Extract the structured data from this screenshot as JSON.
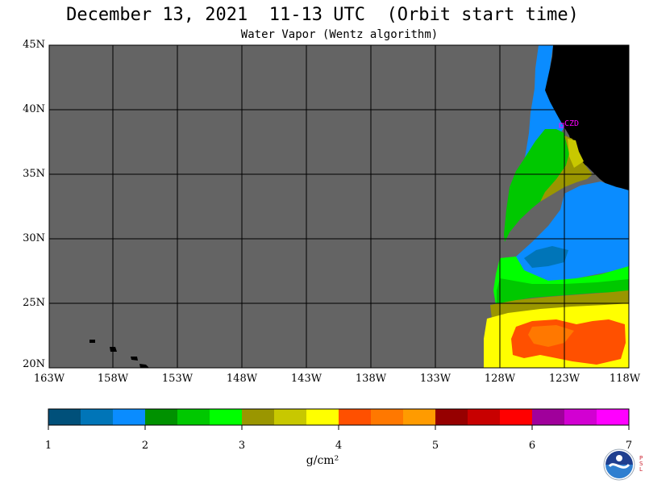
{
  "title": "December 13, 2021  11-13 UTC  (Orbit start time)",
  "subtitle": "Water Vapor (Wentz algorithm)",
  "lat_labels": [
    "45N",
    "40N",
    "35N",
    "30N",
    "25N",
    "20N"
  ],
  "lon_labels": [
    "163W",
    "158W",
    "153W",
    "148W",
    "143W",
    "138W",
    "133W",
    "128W",
    "123W",
    "118W"
  ],
  "station_label": "CZD",
  "colorbar": {
    "labels": [
      "1",
      "2",
      "3",
      "4",
      "5",
      "6",
      "7"
    ],
    "units": "g/cm²",
    "colors": [
      "#00507a",
      "#0075b8",
      "#0a8cff",
      "#009100",
      "#00c800",
      "#00ff00",
      "#9a9600",
      "#c8c800",
      "#ffff00",
      "#ff5000",
      "#ff7800",
      "#ff9b00",
      "#960000",
      "#c80000",
      "#ff0000",
      "#a0009b",
      "#d200d2",
      "#ff00ff"
    ]
  },
  "colors": {
    "no_data": "#646464",
    "land": "#000000",
    "grid": "#000000",
    "station": "#ff00ff"
  },
  "logo": {
    "name": "NOAA",
    "psl_text": "PSL"
  }
}
